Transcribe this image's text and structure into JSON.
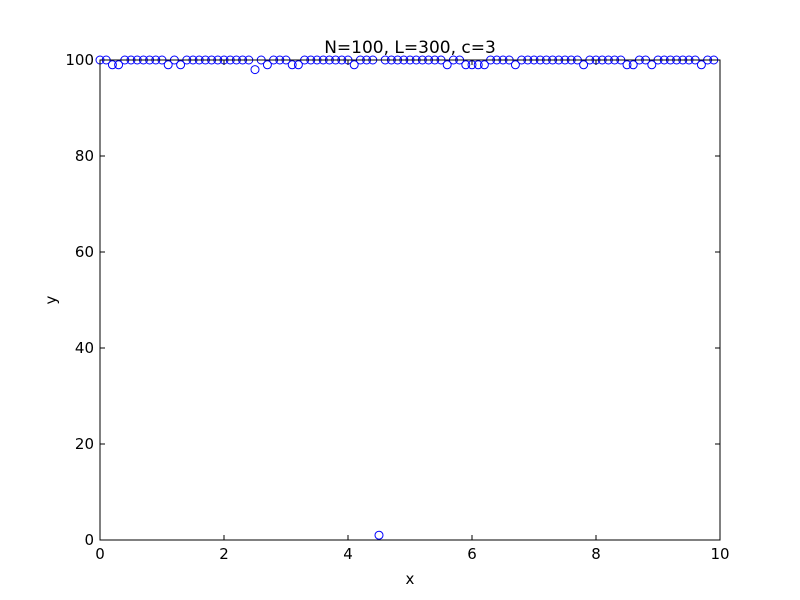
{
  "chart_data": {
    "type": "scatter",
    "title": "N=100, L=300, c=3",
    "xlabel": "x",
    "ylabel": "y",
    "xlim": [
      0,
      10
    ],
    "ylim": [
      0,
      100
    ],
    "xticks": [
      "0",
      "2",
      "4",
      "6",
      "8",
      "10"
    ],
    "yticks": [
      "0",
      "20",
      "40",
      "60",
      "80",
      "100"
    ],
    "grid": false,
    "marker": "open-circle",
    "marker_color": "#0000ff",
    "series": [
      {
        "x": [
          0,
          0.1,
          0.2,
          0.3,
          0.4,
          0.5,
          0.6,
          0.7,
          0.8,
          0.9,
          1.0,
          1.1,
          1.2,
          1.3,
          1.4,
          1.5,
          1.6,
          1.7,
          1.8,
          1.9,
          2.0,
          2.1,
          2.2,
          2.3,
          2.4,
          2.5,
          2.6,
          2.7,
          2.8,
          2.9,
          3.0,
          3.1,
          3.2,
          3.3,
          3.4,
          3.5,
          3.6,
          3.7,
          3.8,
          3.9,
          4.0,
          4.1,
          4.2,
          4.3,
          4.4,
          4.5,
          4.6,
          4.7,
          4.8,
          4.9,
          5.0,
          5.1,
          5.2,
          5.3,
          5.4,
          5.5,
          5.6,
          5.7,
          5.8,
          5.9,
          6.0,
          6.1,
          6.2,
          6.3,
          6.4,
          6.5,
          6.6,
          6.7,
          6.8,
          6.9,
          7.0,
          7.1,
          7.2,
          7.3,
          7.4,
          7.5,
          7.6,
          7.7,
          7.8,
          7.9,
          8.0,
          8.1,
          8.2,
          8.3,
          8.4,
          8.5,
          8.6,
          8.7,
          8.8,
          8.9,
          9.0,
          9.1,
          9.2,
          9.3,
          9.4,
          9.5,
          9.6,
          9.7,
          9.8,
          9.9
        ],
        "y": [
          100,
          100,
          99,
          99,
          100,
          100,
          100,
          100,
          100,
          100,
          100,
          99,
          100,
          99,
          100,
          100,
          100,
          100,
          100,
          100,
          100,
          100,
          100,
          100,
          100,
          98,
          100,
          99,
          100,
          100,
          100,
          99,
          99,
          100,
          100,
          100,
          100,
          100,
          100,
          100,
          100,
          99,
          100,
          100,
          100,
          1,
          100,
          100,
          100,
          100,
          100,
          100,
          100,
          100,
          100,
          100,
          99,
          100,
          100,
          99,
          99,
          99,
          99,
          100,
          100,
          100,
          100,
          99,
          100,
          100,
          100,
          100,
          100,
          100,
          100,
          100,
          100,
          100,
          99,
          100,
          100,
          100,
          100,
          100,
          100,
          99,
          99,
          100,
          100,
          99,
          100,
          100,
          100,
          100,
          100,
          100,
          100,
          99,
          100,
          100
        ]
      }
    ]
  }
}
